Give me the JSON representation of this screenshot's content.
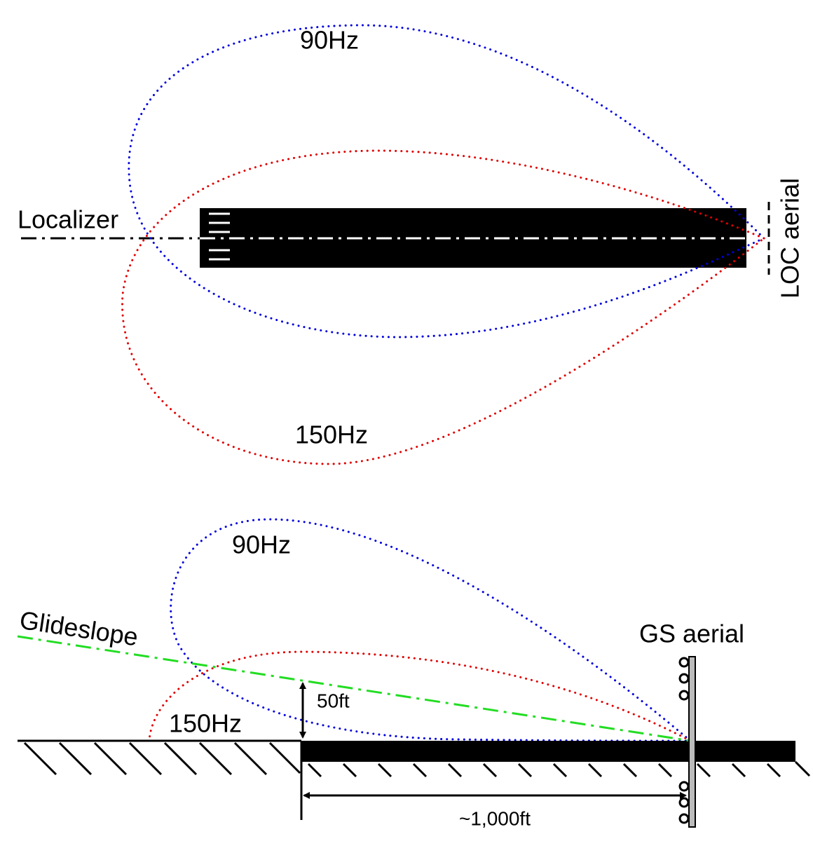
{
  "localizer_view": {
    "upper_lobe": "90Hz",
    "lower_lobe": "150Hz",
    "beam": "Localizer",
    "aerial": "LOC aerial"
  },
  "glideslope_view": {
    "upper_lobe": "90Hz",
    "lower_lobe": "150Hz",
    "beam": "Glideslope",
    "aerial": "GS aerial",
    "height": "50ft",
    "distance": "~1,000ft"
  }
}
